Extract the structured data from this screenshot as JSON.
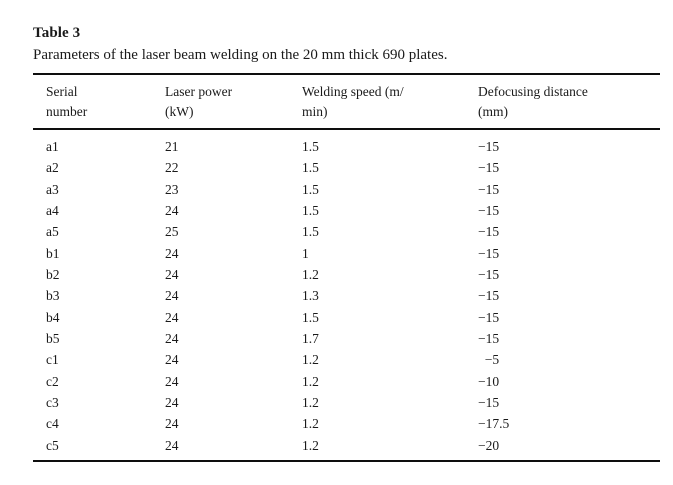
{
  "page": {
    "background_color": "#ffffff",
    "text_color": "#1a1a1a",
    "rule_color": "#0e0e0e"
  },
  "table3": {
    "title": "Table 3",
    "caption": "Parameters of the laser beam welding on the 20 mm thick 690 plates.",
    "columns": [
      {
        "id": "serial-number",
        "label": "Serial\nnumber"
      },
      {
        "id": "laser-power",
        "label": "Laser power\n(kW)"
      },
      {
        "id": "welding-speed",
        "label": "Welding speed (m/\nmin)"
      },
      {
        "id": "defocusing-distance",
        "label": "Defocusing distance\n(mm)"
      }
    ],
    "rows": [
      [
        "a1",
        "21",
        "1.5",
        "−15"
      ],
      [
        "a2",
        "22",
        "1.5",
        "−15"
      ],
      [
        "a3",
        "23",
        "1.5",
        "−15"
      ],
      [
        "a4",
        "24",
        "1.5",
        "−15"
      ],
      [
        "a5",
        "25",
        "1.5",
        "−15"
      ],
      [
        "b1",
        "24",
        "1",
        "−15"
      ],
      [
        "b2",
        "24",
        "1.2",
        "−15"
      ],
      [
        "b3",
        "24",
        "1.3",
        "−15"
      ],
      [
        "b4",
        "24",
        "1.5",
        "−15"
      ],
      [
        "b5",
        "24",
        "1.7",
        "−15"
      ],
      [
        "c1",
        "24",
        "1.2",
        "  −5"
      ],
      [
        "c2",
        "24",
        "1.2",
        "−10"
      ],
      [
        "c3",
        "24",
        "1.2",
        "−15"
      ],
      [
        "c4",
        "24",
        "1.2",
        "−17.5"
      ],
      [
        "c5",
        "24",
        "1.2",
        "−20"
      ]
    ]
  }
}
